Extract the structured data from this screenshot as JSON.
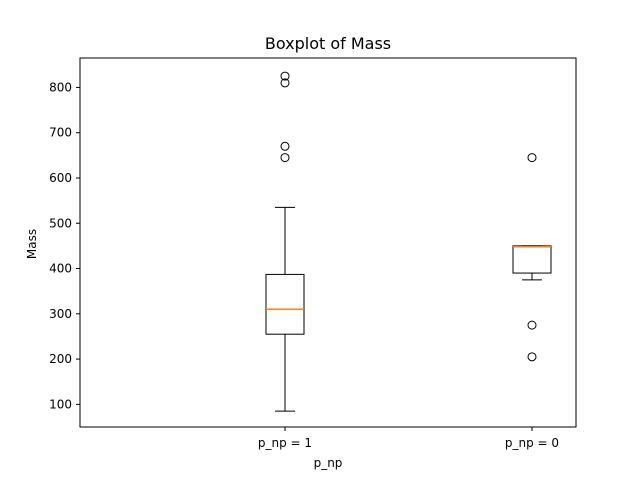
{
  "chart_data": {
    "type": "boxplot",
    "title": "Boxplot of Mass",
    "xlabel": "p_np",
    "ylabel": "Mass",
    "ylim": [
      50,
      865
    ],
    "yticks": [
      100,
      200,
      300,
      400,
      500,
      600,
      700,
      800
    ],
    "grid": false,
    "box_color": "#000000",
    "median_color": "#ff7f0e",
    "series": [
      {
        "name": "p_np = 1",
        "whisker_low": 85,
        "q1": 255,
        "median": 310,
        "q3": 387,
        "whisker_high": 535,
        "outliers": [
          645,
          670,
          810,
          825
        ]
      },
      {
        "name": "p_np = 0",
        "whisker_low": 375,
        "q1": 390,
        "median": 448,
        "q3": 450,
        "whisker_high": 450,
        "outliers": [
          205,
          275,
          645
        ]
      }
    ]
  }
}
